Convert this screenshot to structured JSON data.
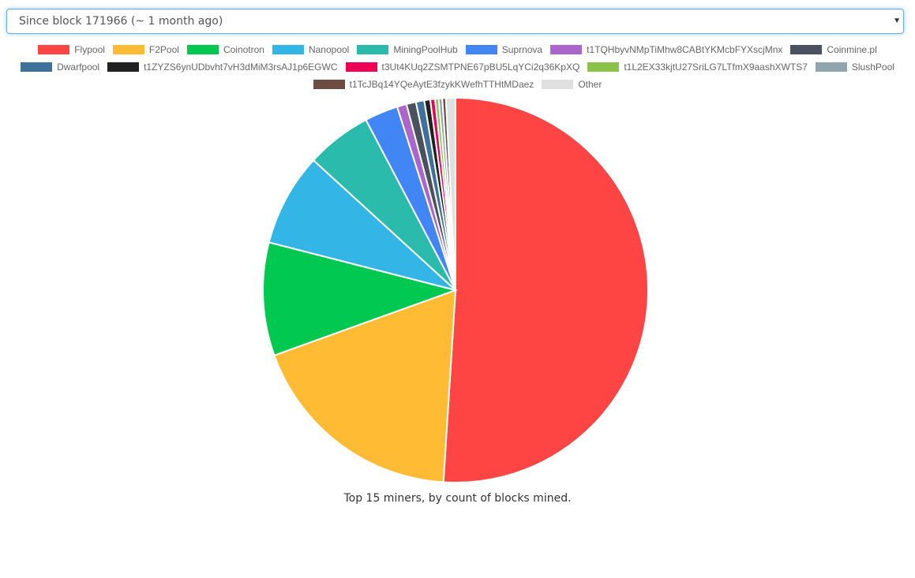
{
  "selector": {
    "selected": "Since block 171966 (~ 1 month ago)"
  },
  "caption": "Top 15 miners, by count of blocks mined.",
  "chart_data": {
    "type": "pie",
    "legend_position": "top",
    "title": "",
    "slices": [
      {
        "label": "Flypool",
        "value": 51.0,
        "color": "#ff4444"
      },
      {
        "label": "F2Pool",
        "value": 18.5,
        "color": "#ffbb33"
      },
      {
        "label": "Coinotron",
        "value": 9.5,
        "color": "#00c851"
      },
      {
        "label": "Nanopool",
        "value": 7.8,
        "color": "#33b5e5"
      },
      {
        "label": "MiningPoolHub",
        "value": 5.5,
        "color": "#2bbbad"
      },
      {
        "label": "Suprnova",
        "value": 2.8,
        "color": "#4285f4"
      },
      {
        "label": "t1TQHbyvNMpTiMhw8CABtYKMcbFYXscjMnx",
        "value": 0.8,
        "color": "#aa66cc"
      },
      {
        "label": "Coinmine.pl",
        "value": 0.8,
        "color": "#4b515d"
      },
      {
        "label": "Dwarfpool",
        "value": 0.7,
        "color": "#3f729b"
      },
      {
        "label": "t1ZYZS6ynUDbvht7vH3dMiM3rsAJ1p6EGWC",
        "value": 0.5,
        "color": "#212121"
      },
      {
        "label": "t3Ut4KUq2ZSMTPNE67pBU5LqYCi2q36KpXQ",
        "value": 0.4,
        "color": "#ee0055"
      },
      {
        "label": "t1L2EX33kjtU27SriLG7LTfmX9aashXWTS7",
        "value": 0.3,
        "color": "#8bc34a"
      },
      {
        "label": "SlushPool",
        "value": 0.3,
        "color": "#90a4ae"
      },
      {
        "label": "t1TcJBq14YQeAytE3fzykKWefhTTHtMDaez",
        "value": 0.3,
        "color": "#6d4c41"
      },
      {
        "label": "Other",
        "value": 0.8,
        "color": "#e0e0e0"
      }
    ]
  }
}
